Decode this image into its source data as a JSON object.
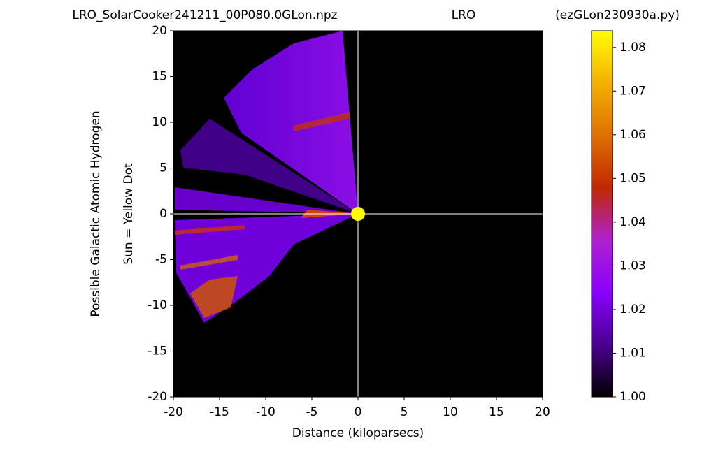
{
  "chart_data": {
    "type": "heatmap",
    "titles": [
      "LRO_SolarCooker241211_00P080.0GLon.npz",
      "LRO",
      "(ezGLon230930a.py)"
    ],
    "xlabel": "Distance (kiloparsecs)",
    "ylabel": [
      "Possible Galactic Atomic Hydrogen",
      "Sun = Yellow Dot"
    ],
    "xlim": [
      -20,
      20
    ],
    "xticks": [
      -20,
      -15,
      -10,
      -5,
      0,
      5,
      10,
      15,
      20
    ],
    "ylim": [
      -20,
      20
    ],
    "yticks": [
      -20,
      -15,
      -10,
      -5,
      0,
      5,
      10,
      15,
      20
    ],
    "sun": {
      "x": 0,
      "y": 0,
      "color": "#ffff00"
    },
    "colorbar": {
      "lim": [
        1.0,
        1.0838
      ],
      "ticks": [
        {
          "value": 1.0,
          "label": "1.00"
        },
        1.01,
        1.02,
        1.03,
        1.04,
        1.05,
        1.06,
        1.07,
        1.08
      ],
      "colors": [
        "#000000",
        "#4a0090",
        "#8a00ff",
        "#b020d0",
        "#c02800",
        "#e07000",
        "#f4b000",
        "#ffff00"
      ]
    }
  }
}
